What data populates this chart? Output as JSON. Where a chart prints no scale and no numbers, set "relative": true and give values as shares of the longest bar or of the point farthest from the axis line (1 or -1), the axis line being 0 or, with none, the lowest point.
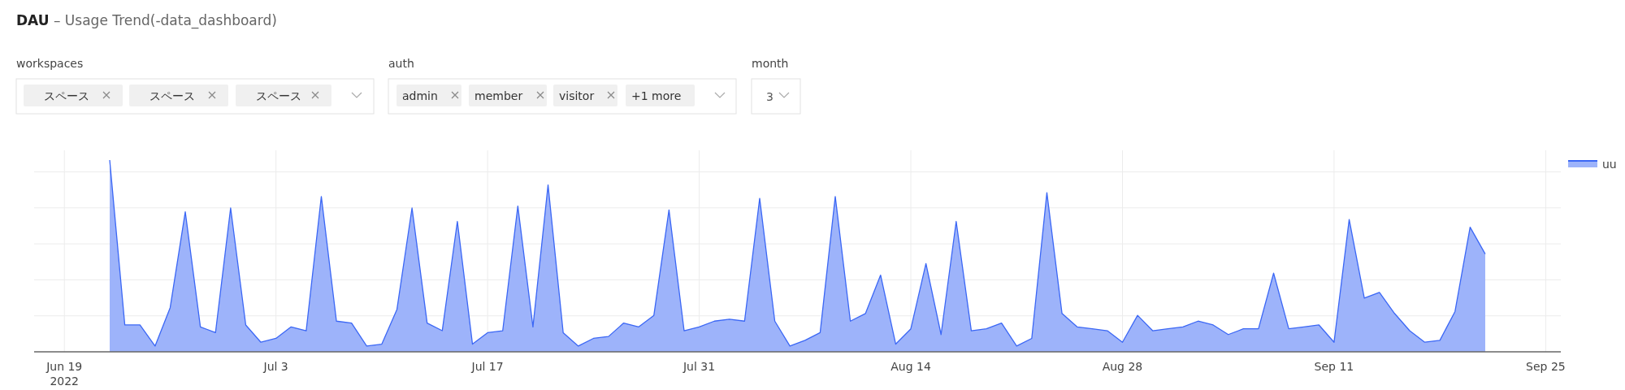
{
  "chart_data": {
    "type": "area",
    "title": "**DAU** – Usage Trend(-data_dashboard)",
    "annotations": [
      "workspaces",
      "スペース",
      "スペース",
      "スペース",
      "auth",
      "admin",
      "member",
      "visitor",
      "+1 more",
      "month",
      "3"
    ],
    "relative": true,
    "grid": true,
    "legend": "top right",
    "tick_labels": "x",
    "xlim": [
      "2022-06-17",
      "2022-09-26"
    ],
    "xticks": [
      {
        "value": "2022-06-19",
        "label": "Jun 19\n2022"
      },
      {
        "value": "2022-07-03",
        "label": "Jul 3"
      },
      {
        "value": "2022-07-17",
        "label": "Jul 17"
      },
      {
        "value": "2022-07-31",
        "label": "Jul 31"
      },
      {
        "value": "2022-08-14",
        "label": "Aug 14"
      },
      {
        "value": "2022-08-28",
        "label": "Aug 28"
      },
      {
        "value": "2022-09-11",
        "label": "Sep 11"
      },
      {
        "value": "2022-09-25",
        "label": "Sep 25"
      }
    ],
    "x": [
      "2022-06-22",
      "2022-06-23",
      "2022-06-24",
      "2022-06-25",
      "2022-06-26",
      "2022-06-27",
      "2022-06-28",
      "2022-06-29",
      "2022-06-30",
      "2022-07-01",
      "2022-07-02",
      "2022-07-03",
      "2022-07-04",
      "2022-07-05",
      "2022-07-06",
      "2022-07-07",
      "2022-07-08",
      "2022-07-09",
      "2022-07-10",
      "2022-07-11",
      "2022-07-12",
      "2022-07-13",
      "2022-07-14",
      "2022-07-15",
      "2022-07-16",
      "2022-07-17",
      "2022-07-18",
      "2022-07-19",
      "2022-07-20",
      "2022-07-21",
      "2022-07-22",
      "2022-07-23",
      "2022-07-24",
      "2022-07-25",
      "2022-07-26",
      "2022-07-27",
      "2022-07-28",
      "2022-07-29",
      "2022-07-30",
      "2022-07-31",
      "2022-08-01",
      "2022-08-02",
      "2022-08-03",
      "2022-08-04",
      "2022-08-05",
      "2022-08-06",
      "2022-08-07",
      "2022-08-08",
      "2022-08-09",
      "2022-08-10",
      "2022-08-11",
      "2022-08-12",
      "2022-08-13",
      "2022-08-14",
      "2022-08-15",
      "2022-08-16",
      "2022-08-17",
      "2022-08-18",
      "2022-08-19",
      "2022-08-20",
      "2022-08-21",
      "2022-08-22",
      "2022-08-23",
      "2022-08-24",
      "2022-08-25",
      "2022-08-26",
      "2022-08-27",
      "2022-08-28",
      "2022-08-29",
      "2022-08-30",
      "2022-08-31",
      "2022-09-01",
      "2022-09-02",
      "2022-09-03",
      "2022-09-04",
      "2022-09-05",
      "2022-09-06",
      "2022-09-07",
      "2022-09-08",
      "2022-09-09",
      "2022-09-10",
      "2022-09-11",
      "2022-09-12",
      "2022-09-13",
      "2022-09-14",
      "2022-09-15",
      "2022-09-16",
      "2022-09-17",
      "2022-09-18",
      "2022-09-19",
      "2022-09-20",
      "2022-09-21"
    ],
    "series": [
      {
        "name": "uu",
        "color": "#3b67f5",
        "values": [
          1,
          0.14,
          0.14,
          0.03,
          0.23,
          0.73,
          0.13,
          0.1,
          0.75,
          0.14,
          0.05,
          0.07,
          0.13,
          0.11,
          0.81,
          0.16,
          0.15,
          0.03,
          0.04,
          0.22,
          0.75,
          0.15,
          0.11,
          0.68,
          0.04,
          0.1,
          0.11,
          0.76,
          0.13,
          0.87,
          0.1,
          0.03,
          0.07,
          0.08,
          0.15,
          0.13,
          0.19,
          0.74,
          0.11,
          0.13,
          0.16,
          0.17,
          0.16,
          0.8,
          0.16,
          0.03,
          0.06,
          0.1,
          0.81,
          0.16,
          0.2,
          0.4,
          0.04,
          0.12,
          0.46,
          0.09,
          0.68,
          0.11,
          0.12,
          0.15,
          0.03,
          0.07,
          0.83,
          0.2,
          0.13,
          0.12,
          0.11,
          0.05,
          0.19,
          0.11,
          0.12,
          0.13,
          0.16,
          0.14,
          0.09,
          0.12,
          0.12,
          0.41,
          0.12,
          0.13,
          0.14,
          0.05,
          0.69,
          0.28,
          0.31,
          0.2,
          0.11,
          0.05,
          0.06,
          0.21,
          0.65,
          0.51
        ]
      }
    ]
  }
}
